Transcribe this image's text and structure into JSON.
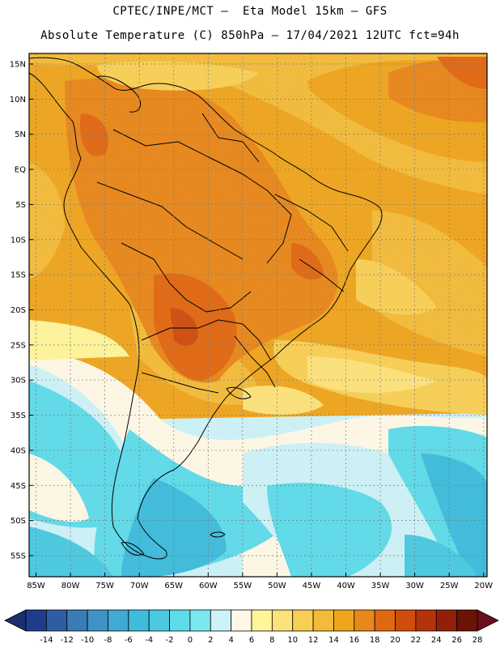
{
  "header": {
    "line1": "CPTEC/INPE/MCT –  Eta Model 15km – GFS",
    "line2": "Absolute Temperature (C) 850hPa – 17/04/2021 12UTC fct=94h"
  },
  "map": {
    "lat_labels": [
      "15N",
      "10N",
      "5N",
      "EQ",
      "5S",
      "10S",
      "15S",
      "20S",
      "25S",
      "30S",
      "35S",
      "40S",
      "45S",
      "50S",
      "55S"
    ],
    "lon_labels": [
      "85W",
      "80W",
      "75W",
      "70W",
      "65W",
      "60W",
      "55W",
      "50W",
      "45W",
      "40W",
      "35W",
      "30W",
      "25W",
      "20W"
    ],
    "extent": {
      "lon_min": -86,
      "lon_max": -19.5,
      "lat_min": -58,
      "lat_max": 16.5
    },
    "gridlines": true
  },
  "colorbar": {
    "labels": [
      "-14",
      "-12",
      "-10",
      "-8",
      "-6",
      "-4",
      "-2",
      "0",
      "2",
      "4",
      "6",
      "8",
      "10",
      "12",
      "14",
      "16",
      "18",
      "20",
      "22",
      "24",
      "26",
      "28"
    ],
    "colors": [
      "#1f3d8c",
      "#2e5da3",
      "#3a7cb5",
      "#3f93c6",
      "#3faad3",
      "#3fbcdc",
      "#4ac9e1",
      "#5fdbe9",
      "#7be8f0",
      "#cdf2f7",
      "#fff8e6",
      "#fff59a",
      "#fde27a",
      "#f8cf55",
      "#f3bb3a",
      "#efa51e",
      "#e8871a",
      "#e16812",
      "#cf4d0d",
      "#b4330b",
      "#922009",
      "#6b1305"
    ]
  }
}
